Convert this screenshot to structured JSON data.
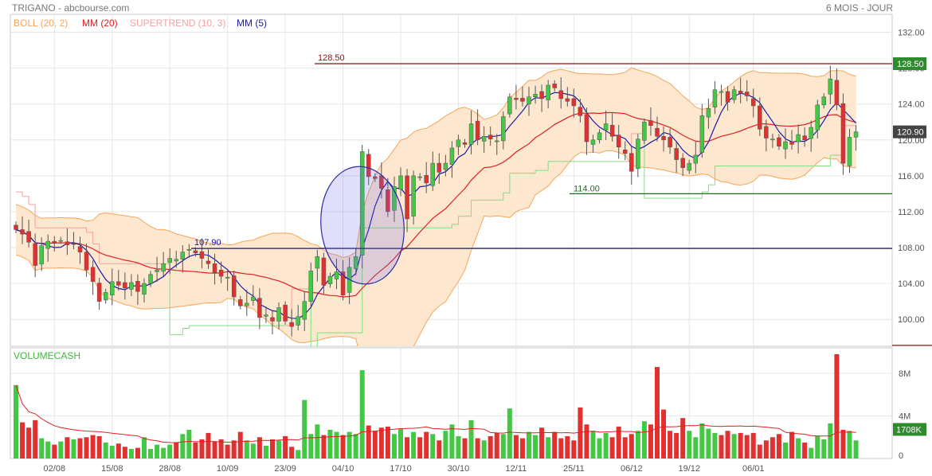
{
  "header": {
    "title": "TRIGANO - abcbourse.com",
    "period": "6 MOIS - JOUR"
  },
  "legend": [
    {
      "label": "BOLL (20, 2)",
      "color": "#f5a55a"
    },
    {
      "label": "MM (20)",
      "color": "#e02020"
    },
    {
      "label": "SUPERTREND (10, 3)",
      "color": "#f4a0a0"
    },
    {
      "label": "MM (5)",
      "color": "#1a1aa8"
    }
  ],
  "volume_label": "VOLUMECASH",
  "colors": {
    "up": "#44c744",
    "down": "#e03030",
    "band_fill": "#fde7cf",
    "band_line": "#f5a55a",
    "mm20": "#e02020",
    "mm5": "#1a1aa8",
    "supertrend_low": "#7fe07f",
    "supertrend_high": "#f4a0a0",
    "price_badge": "#444444",
    "level_badge": "#2e8b2e",
    "resistance": "#8b1010",
    "support": "#1f6e1f"
  },
  "price_axis": {
    "ticks": [
      "132.00",
      "128.00",
      "124.00",
      "120.00",
      "116.00",
      "112.00",
      "108.00",
      "104.00",
      "100.00"
    ],
    "current_price": "120.90",
    "level_badge": "128.50"
  },
  "volume_axis": {
    "ticks": [
      "8M",
      "4M",
      "0"
    ],
    "current_badge": "1708K"
  },
  "annotations": {
    "resistance": "128.50",
    "support_high": "114.00",
    "support_low": "107.90"
  },
  "chart_data": [
    {
      "type": "candlestick",
      "x_ticks": [
        "02/08",
        "15/08",
        "28/08",
        "10/09",
        "23/09",
        "04/10",
        "17/10",
        "30/10",
        "12/11",
        "25/11",
        "06/12",
        "19/12",
        "06/01"
      ],
      "ylim": [
        97,
        134
      ],
      "horizontal_levels": [
        128.5,
        114.0,
        107.9
      ],
      "series_names": [
        "BOLL (20, 2)",
        "MM (20)",
        "SUPERTREND (10, 3)",
        "MM (5)"
      ],
      "close": [
        110.0,
        109.5,
        108.6,
        106.0,
        108.2,
        108.7,
        108.5,
        108.8,
        108.3,
        108.4,
        107.5,
        105.5,
        104.2,
        102.0,
        103.0,
        104.2,
        103.8,
        103.5,
        104.1,
        103.1,
        104.0,
        105.0,
        105.5,
        106.2,
        106.8,
        106.7,
        107.5,
        107.8,
        107.4,
        106.8,
        106.2,
        105.2,
        104.8,
        104.7,
        102.5,
        101.5,
        101.8,
        102.5,
        100.2,
        100.5,
        99.8,
        101.3,
        99.8,
        99.2,
        100.3,
        102.0,
        105.4,
        107.0,
        103.8,
        104.8,
        105.3,
        102.7,
        105.8,
        107.0,
        118.7,
        115.9,
        115.7,
        114.6,
        112.0,
        114.8,
        116.0,
        111.2,
        116.0,
        115.9,
        115.2,
        117.4,
        116.4,
        117.4,
        119.1,
        120.0,
        119.5,
        121.8,
        120.0,
        120.4,
        120.1,
        119.9,
        122.6,
        124.8,
        124.5,
        124.3,
        124.8,
        125.1,
        124.6,
        126.1,
        125.8,
        124.6,
        124.3,
        123.8,
        122.7,
        119.8,
        120.0,
        120.8,
        121.8,
        120.4,
        119.2,
        118.5,
        116.5,
        120.1,
        122.0,
        121.6,
        120.4,
        120.0,
        119.2,
        117.8,
        116.9,
        117.4,
        118.3,
        122.7,
        123.5,
        125.6,
        125.4,
        124.2,
        125.6,
        125.2,
        124.9,
        123.8,
        121.2,
        120.2,
        120.1,
        119.3,
        119.8,
        119.5,
        120.6,
        120.0,
        121.4,
        123.9,
        124.8,
        126.8,
        123.9,
        117.4,
        120.3,
        120.9
      ],
      "volume_M": [
        6.9,
        3.4,
        2.9,
        3.6,
        1.9,
        1.6,
        1.3,
        1.6,
        2.0,
        1.8,
        1.9,
        2.0,
        2.2,
        2.1,
        1.5,
        1.2,
        1.4,
        1.1,
        0.9,
        1.0,
        2.0,
        0.9,
        1.3,
        1.0,
        1.3,
        1.5,
        2.3,
        2.7,
        1.5,
        1.8,
        2.4,
        1.6,
        1.8,
        1.3,
        1.7,
        2.5,
        1.7,
        1.4,
        2.0,
        1.2,
        1.8,
        1.7,
        2.1,
        1.1,
        0.8,
        5.5,
        2.3,
        3.2,
        2.2,
        2.7,
        2.5,
        2.2,
        2.5,
        2.3,
        8.3,
        3.1,
        2.6,
        2.9,
        3.0,
        2.3,
        2.8,
        2.0,
        2.5,
        2.0,
        2.5,
        2.3,
        1.7,
        2.6,
        3.2,
        2.1,
        1.9,
        3.6,
        1.9,
        1.7,
        2.1,
        2.4,
        2.3,
        4.7,
        2.2,
        1.9,
        2.5,
        2.2,
        2.9,
        2.0,
        2.5,
        1.9,
        2.1,
        1.7,
        4.8,
        3.2,
        2.6,
        1.9,
        2.4,
        2.0,
        3.0,
        2.0,
        2.3,
        2.6,
        3.5,
        3.2,
        8.6,
        4.6,
        2.6,
        2.4,
        3.8,
        2.6,
        2.0,
        3.3,
        2.8,
        2.4,
        2.2,
        2.6,
        2.3,
        2.4,
        2.2,
        2.4,
        1.3,
        1.7,
        2.0,
        2.3,
        1.5,
        2.5,
        1.9,
        1.5,
        1.0,
        2.1,
        1.8,
        3.3,
        9.8,
        2.7,
        2.6,
        1.7
      ]
    }
  ]
}
